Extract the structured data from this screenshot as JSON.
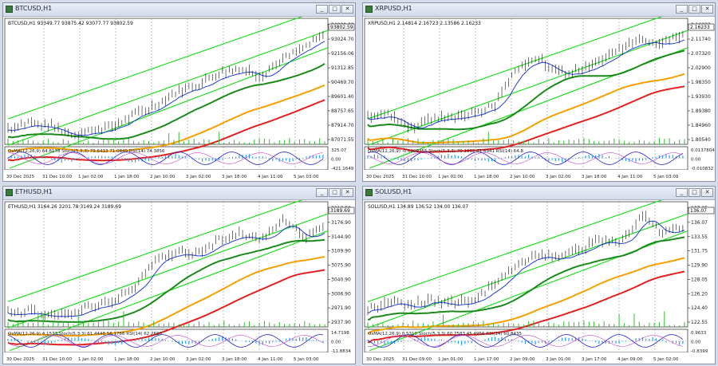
{
  "windows": [
    {
      "id": "btc",
      "title": "BTCUSD,H1",
      "ohlc": "BTCUSD,H1  93349.77 93875.42 93077.77 93802.59",
      "price_labels": [
        "94000.00",
        "93024.70",
        "92156.06",
        "91312.85",
        "90469.70",
        "89601.40",
        "88757.65",
        "87914.70",
        "87071.55"
      ],
      "current_price": "93802.59",
      "indicator_label": "OsMA(12,26,9) 64.6178  Stoch(5,3,3) 79.6433 71.0849  RSI(14) 74.3856",
      "indicator_scale": [
        "325.07",
        "0.00",
        "-421.1649"
      ],
      "time_labels": [
        "30 Dec 2025",
        "31 Dec 10:00",
        "1 Jan 02:00",
        "1 Jan 18:00",
        "2 Jan 10:00",
        "3 Jan 02:00",
        "3 Jan 18:00",
        "4 Jan 11:00",
        "5 Jan 03:00"
      ],
      "start": 0.1,
      "end": 0.92,
      "points": [
        0.1,
        0.15,
        0.12,
        0.05,
        0.08,
        0.12,
        0.22,
        0.3,
        0.42,
        0.48,
        0.58,
        0.62,
        0.56,
        0.7,
        0.8,
        0.92
      ]
    },
    {
      "id": "xrp",
      "title": "XRPUSD,H1",
      "ohlc": "XRPUSD,H1  2.14814 2.16723 2.13586 2.16233",
      "price_labels": [
        "2.16233",
        "2.11740",
        "2.07320",
        "2.02900",
        "1.98350",
        "1.93930",
        "1.89380",
        "1.84960",
        "1.80540"
      ],
      "current_price": "2.16233",
      "indicator_label": "OsMA(12,26,9) -0.0009355  Stoch(5,3,3) 70.1862 61.6941  RSI(14) 64.8",
      "indicator_scale": [
        "0.0137804",
        "0.00",
        "-0.010832"
      ],
      "time_labels": [
        "30 Dec 2025",
        "31 Dec 10:00",
        "1 Jan 02:00",
        "1 Jan 18:00",
        "2 Jan 10:00",
        "3 Jan 02:00",
        "3 Jan 18:00",
        "4 Jan 11:00",
        "5 Jan 03:00"
      ],
      "start": 0.2,
      "end": 0.92,
      "points": [
        0.2,
        0.22,
        0.1,
        0.18,
        0.2,
        0.24,
        0.3,
        0.62,
        0.72,
        0.58,
        0.6,
        0.68,
        0.8,
        0.88,
        0.84,
        0.92
      ]
    },
    {
      "id": "eth",
      "title": "ETHUSD,H1",
      "ohlc": "ETHUSD,H1  3164.26 3201.78 3149.24 3189.69",
      "price_labels": [
        "3213.90",
        "3176.90",
        "3144.90",
        "3109.90",
        "3075.90",
        "3040.90",
        "3006.90",
        "2971.90",
        "2937.90"
      ],
      "current_price": "3189.69",
      "indicator_label": "OsMA(12,26,9) 4.1573  Stoch(5,3,3) 61.4448 56.1766  RSI(14) 62.2680",
      "indicator_scale": [
        "14.7198",
        "0.00",
        "-11.8834"
      ],
      "time_labels": [
        "30 Dec 2025",
        "31 Dec 10:00",
        "1 Jan 02:00",
        "1 Jan 18:00",
        "2 Jan 10:00",
        "3 Jan 02:00",
        "3 Jan 18:00",
        "4 Jan 11:00",
        "5 Jan 03:00"
      ],
      "start": 0.08,
      "end": 0.82,
      "points": [
        0.08,
        0.1,
        0.06,
        0.08,
        0.14,
        0.2,
        0.3,
        0.56,
        0.62,
        0.6,
        0.72,
        0.78,
        0.72,
        0.9,
        0.74,
        0.82
      ]
    },
    {
      "id": "sol",
      "title": "SOLUSD,H1",
      "ohlc": "SOLUSD,H1  134.89 136.52 134.00 136.07",
      "price_labels": [
        "137.25",
        "136.07",
        "133.55",
        "131.75",
        "129.90",
        "128.05",
        "126.20",
        "124.40",
        "122.55"
      ],
      "current_price": "136.07",
      "indicator_label": "OsMA(12,26,9) 0.5310  Stoch(5,3,3) 60.7583 45.4956  RSI(14) 60.8435",
      "indicator_scale": [
        "0.9633",
        "0.00",
        "-0.8399"
      ],
      "time_labels": [
        "30 Dec 2025",
        "31 Dec 09:00",
        "1 Jan 01:00",
        "1 Jan 17:00",
        "2 Jan 09:00",
        "3 Jan 01:00",
        "3 Jan 17:00",
        "4 Jan 09:00",
        "5 Jan 02:00"
      ],
      "start": 0.12,
      "end": 0.85,
      "points": [
        0.12,
        0.18,
        0.14,
        0.2,
        0.16,
        0.2,
        0.32,
        0.5,
        0.6,
        0.56,
        0.64,
        0.72,
        0.7,
        0.95,
        0.78,
        0.85
      ]
    }
  ]
}
